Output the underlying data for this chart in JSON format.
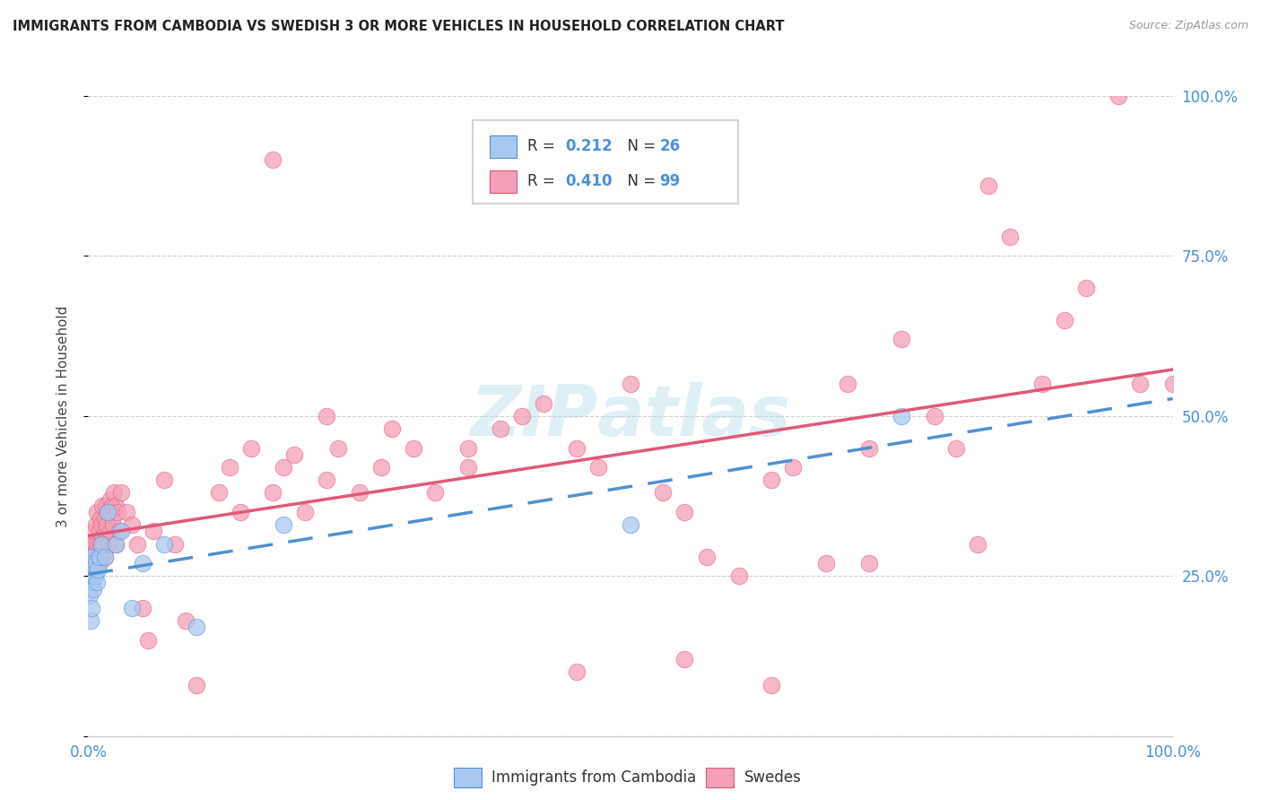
{
  "title": "IMMIGRANTS FROM CAMBODIA VS SWEDISH 3 OR MORE VEHICLES IN HOUSEHOLD CORRELATION CHART",
  "source": "Source: ZipAtlas.com",
  "ylabel": "3 or more Vehicles in Household",
  "legend_label1": "Immigrants from Cambodia",
  "legend_label2": "Swedes",
  "R1": "0.212",
  "N1": "26",
  "R2": "0.410",
  "N2": "99",
  "color1_fill": "#A8C8F0",
  "color2_fill": "#F4A0B8",
  "color1_line": "#5090D0",
  "color2_line": "#E05878",
  "color_blue_text": "#4A90D9",
  "background": "#FFFFFF",
  "cambodia_x": [
    0.1,
    0.2,
    0.2,
    0.3,
    0.3,
    0.4,
    0.4,
    0.5,
    0.5,
    0.6,
    0.7,
    0.8,
    0.9,
    1.0,
    1.2,
    1.5,
    1.8,
    2.5,
    3.0,
    4.0,
    5.0,
    7.0,
    10.0,
    18.0,
    50.0,
    75.0
  ],
  "cambodia_y": [
    22.0,
    18.0,
    25.0,
    20.0,
    28.0,
    24.0,
    27.0,
    23.0,
    26.0,
    25.0,
    27.0,
    24.0,
    26.0,
    28.0,
    30.0,
    28.0,
    35.0,
    30.0,
    32.0,
    20.0,
    27.0,
    30.0,
    17.0,
    33.0,
    33.0,
    50.0
  ],
  "swedes_x": [
    0.1,
    0.2,
    0.3,
    0.4,
    0.5,
    0.5,
    0.6,
    0.7,
    0.7,
    0.8,
    0.8,
    0.9,
    1.0,
    1.0,
    1.1,
    1.1,
    1.2,
    1.2,
    1.3,
    1.3,
    1.4,
    1.5,
    1.5,
    1.6,
    1.6,
    1.7,
    1.8,
    1.9,
    2.0,
    2.0,
    2.1,
    2.2,
    2.3,
    2.4,
    2.5,
    2.5,
    2.7,
    2.9,
    3.0,
    3.5,
    4.0,
    4.5,
    5.0,
    5.5,
    6.0,
    7.0,
    8.0,
    9.0,
    10.0,
    12.0,
    13.0,
    14.0,
    15.0,
    17.0,
    18.0,
    19.0,
    20.0,
    22.0,
    23.0,
    25.0,
    27.0,
    30.0,
    32.0,
    35.0,
    38.0,
    40.0,
    42.0,
    45.0,
    47.0,
    50.0,
    53.0,
    55.0,
    57.0,
    60.0,
    63.0,
    65.0,
    68.0,
    70.0,
    72.0,
    75.0,
    78.0,
    80.0,
    83.0,
    85.0,
    88.0,
    90.0,
    92.0,
    95.0,
    97.0,
    100.0,
    17.0,
    22.0,
    28.0,
    35.0,
    45.0,
    55.0,
    63.0,
    72.0,
    82.0
  ],
  "swedes_y": [
    27.0,
    28.0,
    30.0,
    27.0,
    28.0,
    32.0,
    30.0,
    29.0,
    33.0,
    28.0,
    35.0,
    30.0,
    27.0,
    32.0,
    30.0,
    34.0,
    28.0,
    33.0,
    31.0,
    36.0,
    30.0,
    28.0,
    34.0,
    32.0,
    36.0,
    33.0,
    35.0,
    30.0,
    32.0,
    37.0,
    35.0,
    36.0,
    33.0,
    38.0,
    30.0,
    36.0,
    35.0,
    32.0,
    38.0,
    35.0,
    33.0,
    30.0,
    20.0,
    15.0,
    32.0,
    40.0,
    30.0,
    18.0,
    8.0,
    38.0,
    42.0,
    35.0,
    45.0,
    38.0,
    42.0,
    44.0,
    35.0,
    40.0,
    45.0,
    38.0,
    42.0,
    45.0,
    38.0,
    42.0,
    48.0,
    50.0,
    52.0,
    45.0,
    42.0,
    55.0,
    38.0,
    35.0,
    28.0,
    25.0,
    40.0,
    42.0,
    27.0,
    55.0,
    45.0,
    62.0,
    50.0,
    45.0,
    86.0,
    78.0,
    55.0,
    65.0,
    70.0,
    100.0,
    55.0,
    55.0,
    90.0,
    50.0,
    48.0,
    45.0,
    10.0,
    12.0,
    8.0,
    27.0,
    30.0
  ]
}
